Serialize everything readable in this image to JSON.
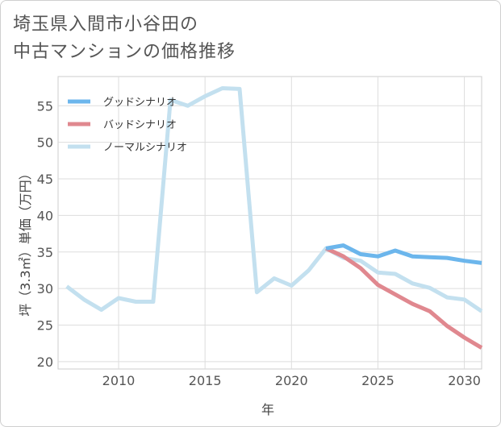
{
  "title_line1": "埼玉県入間市小谷田の",
  "title_line2": "中古マンションの価格推移",
  "chart_data": {
    "type": "line",
    "xlabel": "年",
    "ylabel": "坪（3.3㎡）単価（万円）",
    "xlim": [
      2006.5,
      2031
    ],
    "ylim": [
      19,
      59
    ],
    "xticks": [
      2010,
      2015,
      2020,
      2025,
      2030
    ],
    "yticks": [
      20,
      25,
      30,
      35,
      40,
      45,
      50,
      55
    ],
    "grid": true,
    "legend_position": "top-left",
    "series": [
      {
        "name": "グッドシナリオ",
        "color": "#6cb6ec",
        "x": [
          2022,
          2023,
          2024,
          2025,
          2026,
          2027,
          2028,
          2029,
          2030,
          2031
        ],
        "values": [
          35.5,
          35.9,
          34.7,
          34.4,
          35.2,
          34.4,
          34.3,
          34.2,
          33.8,
          33.5
        ]
      },
      {
        "name": "バッドシナリオ",
        "color": "#e0888f",
        "x": [
          2022,
          2023,
          2024,
          2025,
          2026,
          2027,
          2028,
          2029,
          2030,
          2031
        ],
        "values": [
          35.5,
          34.4,
          32.8,
          30.5,
          29.2,
          27.9,
          26.9,
          24.9,
          23.3,
          21.9
        ]
      },
      {
        "name": "ノーマルシナリオ",
        "color": "#c3e0ef",
        "x": [
          2007,
          2008,
          2009,
          2010,
          2011,
          2012,
          2013,
          2014,
          2015,
          2016,
          2017,
          2018,
          2019,
          2020,
          2021,
          2022,
          2023,
          2024,
          2025,
          2026,
          2027,
          2028,
          2029,
          2030,
          2031
        ],
        "values": [
          30.3,
          28.5,
          27.1,
          28.7,
          28.2,
          28.2,
          55.8,
          55.0,
          56.3,
          57.4,
          57.3,
          29.5,
          31.4,
          30.4,
          32.5,
          35.5,
          34.2,
          33.8,
          32.2,
          32.0,
          30.7,
          30.1,
          28.8,
          28.5,
          26.9
        ]
      }
    ]
  }
}
